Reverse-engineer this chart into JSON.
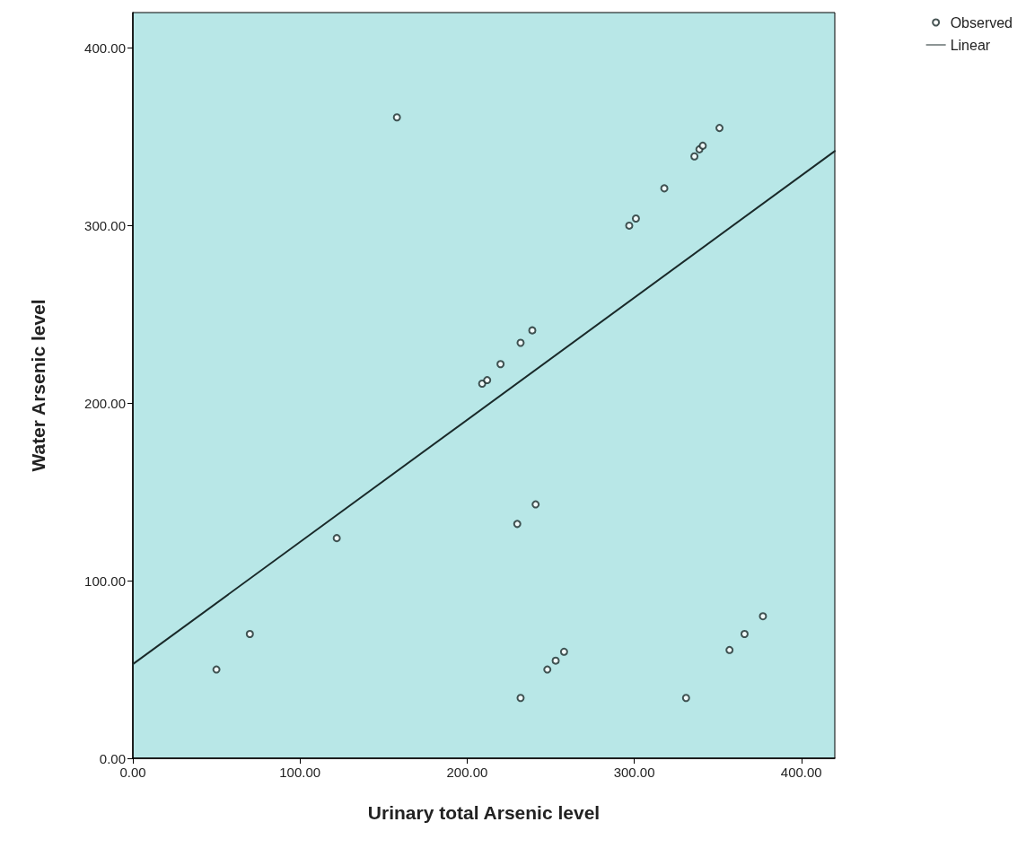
{
  "chart_data": {
    "type": "scatter",
    "xlabel": "Urinary total Arsenic level",
    "ylabel": "Water Arsenic level",
    "xlim": [
      0,
      420
    ],
    "ylim": [
      0,
      420
    ],
    "xticks": [
      {
        "value": 0,
        "label": "0.00"
      },
      {
        "value": 100,
        "label": "100.00"
      },
      {
        "value": 200,
        "label": "200.00"
      },
      {
        "value": 300,
        "label": "300.00"
      },
      {
        "value": 400,
        "label": "400.00"
      }
    ],
    "yticks": [
      {
        "value": 0,
        "label": "0.00"
      },
      {
        "value": 100,
        "label": "100.00"
      },
      {
        "value": 200,
        "label": "200.00"
      },
      {
        "value": 300,
        "label": "300.00"
      },
      {
        "value": 400,
        "label": "400.00"
      }
    ],
    "grid": false,
    "legend": "top right",
    "series": [
      {
        "name": "Observed",
        "type": "scatter",
        "marker": "circle",
        "color": "#1a2a2a",
        "x": [
          50,
          70,
          122,
          158,
          209,
          212,
          220,
          232,
          239,
          297,
          301,
          318,
          336,
          339,
          341,
          351,
          241,
          230,
          258,
          253,
          248,
          232,
          331,
          357,
          366,
          377
        ],
        "values": [
          50,
          70,
          124,
          361,
          211,
          213,
          222,
          234,
          241,
          300,
          304,
          321,
          339,
          343,
          345,
          355,
          143,
          132,
          60,
          55,
          50,
          34,
          34,
          61,
          70,
          80
        ]
      },
      {
        "name": "Linear",
        "type": "line",
        "marker": "none",
        "color": "#1a2a2a",
        "x": [
          0,
          420
        ],
        "values": [
          53,
          342
        ],
        "line_style": "solid"
      }
    ]
  }
}
